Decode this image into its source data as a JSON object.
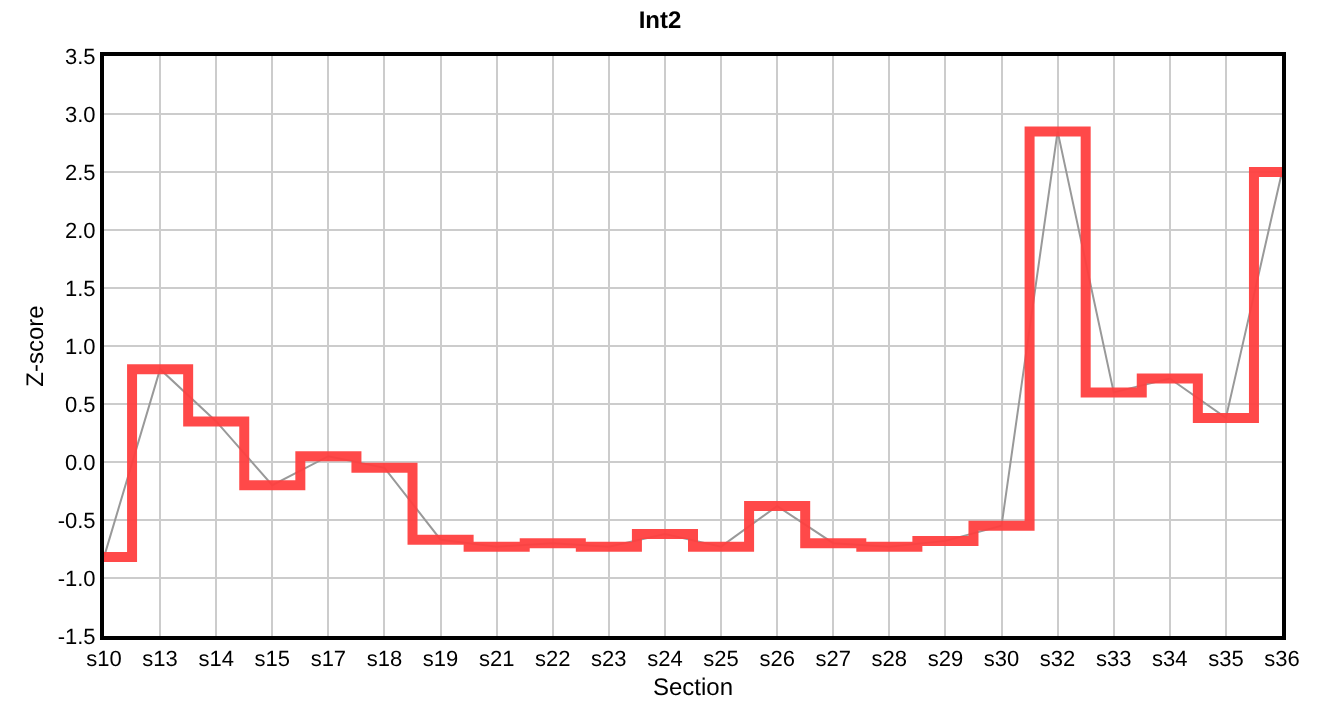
{
  "chart_data": {
    "type": "step",
    "title": "Int2",
    "xlabel": "Section",
    "ylabel": "Z-score",
    "categories": [
      "s10",
      "s13",
      "s14",
      "s15",
      "s17",
      "s18",
      "s19",
      "s21",
      "s22",
      "s23",
      "s24",
      "s25",
      "s26",
      "s27",
      "s28",
      "s29",
      "s30",
      "s32",
      "s33",
      "s34",
      "s35",
      "s36"
    ],
    "series": [
      {
        "type": "line",
        "color": "#999999",
        "values": [
          -0.82,
          0.8,
          0.35,
          -0.2,
          0.05,
          -0.05,
          -0.67,
          -0.73,
          -0.7,
          -0.73,
          -0.62,
          -0.73,
          -0.38,
          -0.7,
          -0.73,
          -0.68,
          -0.55,
          2.85,
          0.6,
          0.72,
          0.38,
          2.5
        ]
      },
      {
        "color": "#ff4040",
        "values": [
          -0.82,
          0.8,
          0.35,
          -0.2,
          0.05,
          -0.05,
          -0.67,
          -0.73,
          -0.7,
          -0.73,
          -0.62,
          -0.73,
          -0.38,
          -0.7,
          -0.73,
          -0.68,
          -0.55,
          2.85,
          0.6,
          0.72,
          0.38,
          2.5
        ]
      }
    ],
    "ylim": [
      -1.5,
      3.5
    ],
    "yticks": [
      -1.5,
      {
        "value": -1,
        "label": "-1.0"
      },
      -0.5,
      {
        "value": 0,
        "label": "0.0"
      },
      0.5,
      {
        "value": 1,
        "label": "1.0"
      },
      1.5,
      {
        "value": 2,
        "label": "2.0"
      },
      2.5,
      {
        "value": 3,
        "label": "3.0"
      },
      3.5
    ],
    "grid": true
  }
}
